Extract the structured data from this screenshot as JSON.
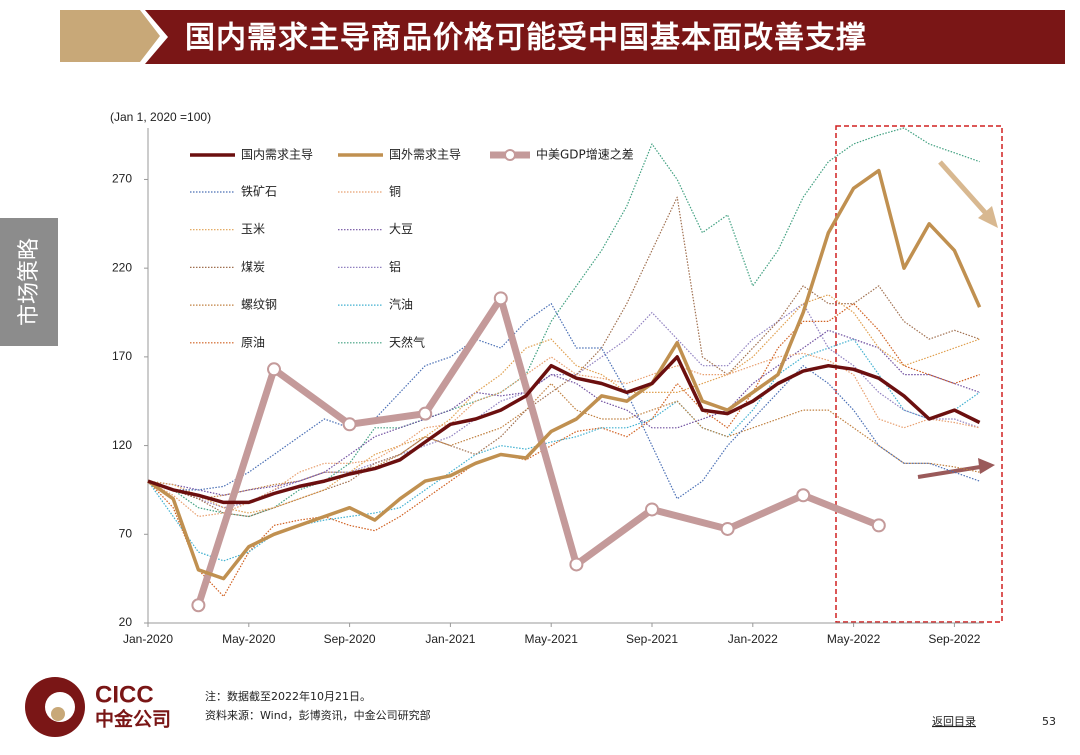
{
  "header": {
    "title": "国内需求主导商品价格可能受中国基本面改善支撑",
    "side_tab": "市场策略"
  },
  "chart_data": {
    "type": "line",
    "y_label": "(Jan 1, 2020 =100)",
    "ylim": [
      20,
      299
    ],
    "yticks": [
      20,
      70,
      120,
      170,
      220,
      270
    ],
    "x": [
      "Jan-2020",
      "Feb-2020",
      "Mar-2020",
      "Apr-2020",
      "May-2020",
      "Jun-2020",
      "Jul-2020",
      "Aug-2020",
      "Sep-2020",
      "Oct-2020",
      "Nov-2020",
      "Dec-2020",
      "Jan-2021",
      "Feb-2021",
      "Mar-2021",
      "Apr-2021",
      "May-2021",
      "Jun-2021",
      "Jul-2021",
      "Aug-2021",
      "Sep-2021",
      "Oct-2021",
      "Nov-2021",
      "Dec-2021",
      "Jan-2022",
      "Feb-2022",
      "Mar-2022",
      "Apr-2022",
      "May-2022",
      "Jun-2022",
      "Jul-2022",
      "Aug-2022",
      "Sep-2022",
      "Oct-2022"
    ],
    "xticks": [
      "Jan-2020",
      "May-2020",
      "Sep-2020",
      "Jan-2021",
      "May-2021",
      "Sep-2021",
      "Jan-2022",
      "May-2022",
      "Sep-2022"
    ],
    "series": [
      {
        "name": "国内需求主导",
        "color": "#6b0f0f",
        "style": "solid",
        "values": [
          100,
          95,
          92,
          88,
          88,
          93,
          97,
          100,
          104,
          107,
          112,
          122,
          132,
          135,
          140,
          148,
          165,
          158,
          155,
          150,
          155,
          170,
          140,
          138,
          145,
          155,
          162,
          165,
          163,
          158,
          148,
          135,
          140,
          133
        ]
      },
      {
        "name": "国外需求主导",
        "color": "#c09050",
        "style": "solid",
        "values": [
          100,
          90,
          50,
          45,
          63,
          70,
          75,
          80,
          85,
          78,
          90,
          100,
          103,
          110,
          115,
          113,
          128,
          135,
          148,
          145,
          155,
          178,
          145,
          140,
          150,
          160,
          195,
          240,
          265,
          275,
          220,
          245,
          230,
          198
        ]
      },
      {
        "name": "中美GDP增速之差",
        "color": "#c49a9a",
        "style": "markers",
        "x": [
          "Mar-2020",
          "Jun-2020",
          "Sep-2020",
          "Dec-2020",
          "Mar-2021",
          "Jun-2021",
          "Sep-2021",
          "Dec-2021",
          "Mar-2022",
          "Jun-2022"
        ],
        "values": [
          30,
          163,
          132,
          138,
          203,
          53,
          84,
          73,
          92,
          75
        ]
      },
      {
        "name": "铁矿石",
        "color": "#4a6fb5",
        "style": "dotted",
        "values": [
          100,
          95,
          95,
          97,
          105,
          115,
          125,
          135,
          130,
          135,
          150,
          165,
          170,
          180,
          175,
          190,
          200,
          175,
          175,
          150,
          120,
          90,
          100,
          120,
          135,
          150,
          165,
          155,
          140,
          120,
          110,
          110,
          105,
          100
        ]
      },
      {
        "name": "铜",
        "color": "#e8a070",
        "style": "dotted",
        "values": [
          100,
          92,
          80,
          82,
          88,
          95,
          105,
          110,
          110,
          112,
          120,
          130,
          132,
          145,
          150,
          160,
          170,
          160,
          158,
          155,
          160,
          165,
          160,
          160,
          165,
          170,
          172,
          168,
          160,
          135,
          130,
          135,
          133,
          130
        ]
      },
      {
        "name": "玉米",
        "color": "#e0a050",
        "style": "dotted",
        "values": [
          100,
          98,
          92,
          85,
          82,
          85,
          90,
          95,
          105,
          115,
          120,
          125,
          135,
          150,
          160,
          175,
          180,
          165,
          160,
          150,
          150,
          150,
          155,
          160,
          170,
          185,
          200,
          205,
          195,
          175,
          165,
          170,
          175,
          180
        ]
      },
      {
        "name": "大豆",
        "color": "#7050a0",
        "style": "dotted",
        "values": [
          100,
          98,
          95,
          92,
          95,
          97,
          100,
          105,
          115,
          125,
          130,
          135,
          140,
          150,
          148,
          150,
          160,
          155,
          145,
          140,
          130,
          130,
          135,
          140,
          155,
          165,
          175,
          185,
          180,
          175,
          160,
          160,
          155,
          150
        ]
      },
      {
        "name": "煤炭",
        "color": "#a07050",
        "style": "dotted",
        "values": [
          100,
          95,
          90,
          82,
          80,
          85,
          90,
          95,
          100,
          110,
          115,
          125,
          120,
          115,
          125,
          140,
          150,
          160,
          175,
          200,
          230,
          260,
          170,
          160,
          175,
          190,
          210,
          200,
          200,
          210,
          190,
          180,
          185,
          180
        ]
      },
      {
        "name": "铝",
        "color": "#9080c0",
        "style": "dotted",
        "values": [
          100,
          95,
          90,
          85,
          88,
          95,
          100,
          105,
          105,
          110,
          115,
          120,
          125,
          135,
          145,
          150,
          160,
          160,
          170,
          180,
          195,
          180,
          165,
          165,
          180,
          190,
          200,
          175,
          165,
          150,
          140,
          135,
          135,
          130
        ]
      },
      {
        "name": "螺纹钢",
        "color": "#c08040",
        "style": "dotted",
        "values": [
          100,
          95,
          90,
          92,
          95,
          98,
          100,
          105,
          105,
          108,
          115,
          125,
          120,
          125,
          130,
          140,
          155,
          140,
          135,
          135,
          140,
          145,
          130,
          125,
          130,
          135,
          140,
          140,
          130,
          120,
          110,
          110,
          108,
          105
        ]
      },
      {
        "name": "汽油",
        "color": "#40b0d0",
        "style": "dotted",
        "values": [
          100,
          80,
          60,
          55,
          60,
          70,
          75,
          78,
          80,
          82,
          85,
          95,
          105,
          115,
          120,
          118,
          122,
          125,
          130,
          130,
          135,
          145,
          130,
          125,
          140,
          160,
          170,
          175,
          180,
          160,
          140,
          135,
          140,
          150
        ]
      },
      {
        "name": "原油",
        "color": "#d06020",
        "style": "dotted",
        "values": [
          100,
          85,
          50,
          35,
          60,
          75,
          78,
          80,
          75,
          72,
          80,
          90,
          100,
          110,
          115,
          112,
          120,
          128,
          130,
          125,
          135,
          155,
          140,
          130,
          150,
          175,
          190,
          190,
          200,
          185,
          165,
          160,
          155,
          160
        ]
      },
      {
        "name": "天然气",
        "color": "#40a080",
        "style": "dotted",
        "values": [
          100,
          95,
          85,
          82,
          80,
          85,
          95,
          100,
          110,
          130,
          130,
          135,
          140,
          145,
          150,
          160,
          190,
          210,
          230,
          255,
          290,
          270,
          240,
          250,
          210,
          230,
          260,
          280,
          290,
          295,
          299,
          290,
          285,
          280
        ]
      }
    ]
  },
  "footer": {
    "note": "注：数据截至2022年10月21日。",
    "source": "资料来源：Wind，彭博资讯，中金公司研究部",
    "logo_en": "CICC",
    "logo_cn": "中金公司",
    "back_link": "返回目录",
    "page": "53"
  }
}
